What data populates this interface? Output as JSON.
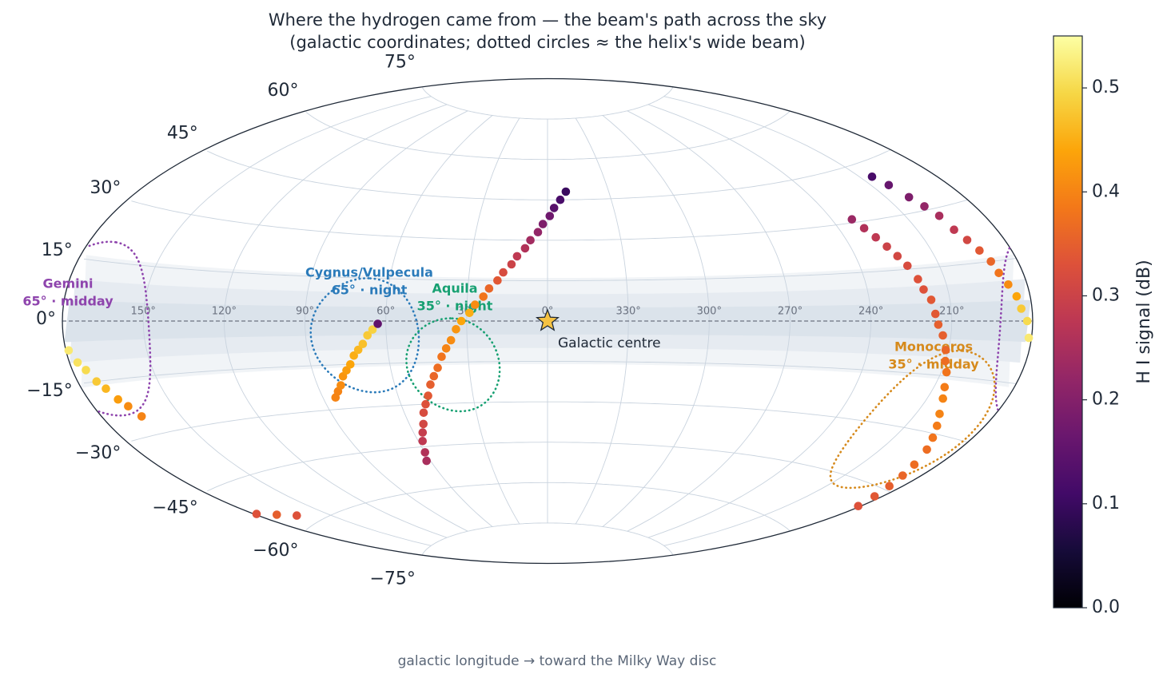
{
  "chart_data": {
    "type": "scatter",
    "projection": "aitoff",
    "title": "Where the hydrogen came from — the beam's path across the sky",
    "subtitle": "(galactic coordinates; dotted circles ≈ the helix's wide beam)",
    "xlabel": "galactic longitude  →  toward the Milky Way disc",
    "colorbar_label": "H I signal (dB)",
    "colormap": "inferno",
    "clim": [
      0,
      0.55
    ],
    "cticks": [
      {
        "value": 0,
        "label": "0.0"
      },
      0.1,
      0.2,
      0.3,
      0.4,
      0.5
    ],
    "xticks": [
      {
        "value": 150,
        "label": "150°"
      },
      {
        "value": 120,
        "label": "120°"
      },
      {
        "value": 90,
        "label": "90°"
      },
      {
        "value": 60,
        "label": "60°"
      },
      {
        "value": 30,
        "label": "30°"
      },
      {
        "value": 0,
        "label": "0°"
      },
      {
        "value": 330,
        "label": "330°"
      },
      {
        "value": 300,
        "label": "300°"
      },
      {
        "value": 270,
        "label": "270°"
      },
      {
        "value": 240,
        "label": "240°"
      },
      {
        "value": 210,
        "label": "210°"
      }
    ],
    "yticks": [
      {
        "value": 75,
        "label": "75°"
      },
      {
        "value": 60,
        "label": "60°"
      },
      {
        "value": 45,
        "label": "45°"
      },
      {
        "value": 30,
        "label": "30°"
      },
      {
        "value": 15,
        "label": "15°"
      },
      {
        "value": 0,
        "label": "0°"
      },
      {
        "value": -15,
        "label": "−15°"
      },
      {
        "value": -30,
        "label": "−30°"
      },
      {
        "value": -45,
        "label": "−45°"
      },
      {
        "value": -60,
        "label": "−60°"
      },
      {
        "value": -75,
        "label": "−75°"
      }
    ],
    "grid": true,
    "x": [
      62,
      60,
      58,
      56,
      54,
      52,
      50,
      48,
      46,
      44,
      42,
      40,
      38,
      36,
      34,
      32,
      29,
      27,
      24,
      22,
      19,
      17,
      14,
      12,
      9,
      7,
      4,
      2,
      359,
      357,
      354,
      351,
      85,
      83,
      81,
      79,
      77,
      75,
      73,
      71,
      69,
      67,
      65,
      63,
      179,
      177,
      175,
      173,
      171,
      169,
      167,
      165,
      205,
      203,
      201,
      199,
      197,
      196,
      194,
      192,
      190,
      189,
      187,
      185,
      184,
      182,
      181,
      232,
      230,
      228,
      226,
      224,
      222,
      220,
      219,
      217,
      216,
      215,
      213,
      211,
      210,
      208,
      206,
      204,
      201,
      198,
      195,
      192,
      189,
      187,
      185,
      183,
      181,
      179,
      172,
      165
    ],
    "y": [
      -50,
      -47,
      -43,
      -40,
      -37,
      -33,
      -30,
      -27,
      -23,
      -20,
      -17,
      -13,
      -10,
      -7,
      -3,
      0,
      3,
      6,
      9,
      12,
      15,
      18,
      21,
      24,
      27,
      30,
      33,
      36,
      39,
      42,
      45,
      48,
      -26,
      -24,
      -22,
      -19,
      -17,
      -15,
      -12,
      -10,
      -8,
      -5,
      -3,
      -1,
      -7,
      -10,
      -12,
      -15,
      -17,
      -20,
      -22,
      -25,
      41,
      38,
      34,
      31,
      28,
      24,
      21,
      18,
      15,
      12,
      9,
      6,
      3,
      0,
      -4,
      31,
      28,
      25,
      22,
      19,
      16,
      12,
      9,
      6,
      2,
      -1,
      -4,
      -8,
      -11,
      -14,
      -18,
      -21,
      -25,
      -28,
      -31,
      -34,
      -38,
      -41,
      -44,
      -47,
      -50,
      -53,
      -55,
      -57
    ],
    "values": [
      0.25,
      0.26,
      0.28,
      0.29,
      0.31,
      0.32,
      0.33,
      0.34,
      0.35,
      0.36,
      0.37,
      0.38,
      0.4,
      0.41,
      0.42,
      0.44,
      0.45,
      0.41,
      0.38,
      0.36,
      0.34,
      0.32,
      0.3,
      0.28,
      0.26,
      0.24,
      0.22,
      0.19,
      0.17,
      0.14,
      0.12,
      0.1,
      0.4,
      0.4,
      0.41,
      0.42,
      0.43,
      0.44,
      0.45,
      0.46,
      0.47,
      0.48,
      0.49,
      0.15,
      0.52,
      0.51,
      0.5,
      0.48,
      0.46,
      0.43,
      0.41,
      0.4,
      0.12,
      0.16,
      0.19,
      0.22,
      0.25,
      0.28,
      0.31,
      0.34,
      0.36,
      0.38,
      0.41,
      0.44,
      0.48,
      0.5,
      0.52,
      0.23,
      0.26,
      0.28,
      0.3,
      0.31,
      0.32,
      0.33,
      0.33,
      0.34,
      0.34,
      0.35,
      0.35,
      0.36,
      0.37,
      0.38,
      0.39,
      0.4,
      0.4,
      0.39,
      0.38,
      0.37,
      0.37,
      0.36,
      0.35,
      0.34,
      0.33,
      0.33,
      0.35,
      0.33
    ],
    "beams": [
      {
        "name": "Cygnus/Vulpecula",
        "note": "65° · night",
        "l": 68,
        "b": -5,
        "radius": 20,
        "color": "#2b7bba"
      },
      {
        "name": "Aquila",
        "note": "35° · night",
        "l": 36,
        "b": -16,
        "radius": 17,
        "color": "#17a072"
      },
      {
        "name": "Gemini",
        "note": "65° · midday",
        "l": 170,
        "b": -2,
        "radius": 22,
        "color": "#8e44ad"
      },
      {
        "name": "Monoceros",
        "note": "35° · midday",
        "l": 205,
        "b": -28,
        "radius": 20,
        "color": "#d68a1c"
      }
    ],
    "marker": {
      "label": "Galactic centre",
      "l": 0,
      "b": 0
    }
  }
}
